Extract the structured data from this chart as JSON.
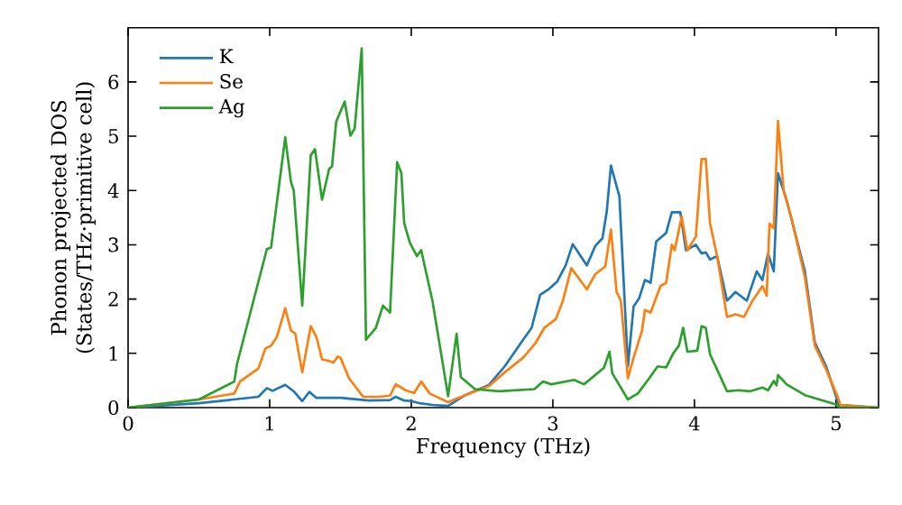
{
  "chart_data": {
    "type": "line",
    "xlabel": "Frequency (THz)",
    "ylabel": "Phonon projected DOS\n(States/THz·primitive cell)",
    "xlim": [
      0,
      5.3
    ],
    "ylim": [
      0,
      7
    ],
    "xticks": [
      0,
      1,
      2,
      3,
      4,
      5
    ],
    "yticks": [
      0,
      1,
      2,
      3,
      4,
      5,
      6
    ],
    "legend": "top left",
    "grid": false,
    "series": [
      {
        "name": "K",
        "color": "#1f77b4",
        "x": [
          0,
          0.5,
          0.92,
          0.98,
          1.02,
          1.11,
          1.17,
          1.23,
          1.28,
          1.33,
          1.5,
          1.7,
          1.85,
          1.89,
          1.95,
          2.0,
          2.06,
          2.15,
          2.26,
          2.38,
          2.55,
          2.66,
          2.79,
          2.85,
          2.91,
          2.97,
          3.03,
          3.09,
          3.14,
          3.24,
          3.3,
          3.35,
          3.38,
          3.41,
          3.47,
          3.53,
          3.57,
          3.61,
          3.65,
          3.69,
          3.73,
          3.8,
          3.84,
          3.9,
          3.94,
          4.01,
          4.05,
          4.08,
          4.11,
          4.16,
          4.23,
          4.29,
          4.37,
          4.44,
          4.48,
          4.52,
          4.56,
          4.59,
          4.65,
          4.78,
          4.85,
          4.93,
          5.02,
          5.3
        ],
        "values": [
          0,
          0.08,
          0.2,
          0.36,
          0.31,
          0.42,
          0.3,
          0.12,
          0.29,
          0.18,
          0.18,
          0.13,
          0.14,
          0.2,
          0.13,
          0.12,
          0.08,
          0.05,
          0.03,
          0.23,
          0.42,
          0.76,
          1.25,
          1.47,
          2.08,
          2.18,
          2.32,
          2.62,
          3.01,
          2.62,
          2.98,
          3.12,
          3.6,
          4.46,
          3.89,
          0.76,
          1.86,
          2.02,
          2.35,
          2.3,
          3.06,
          3.22,
          3.6,
          3.6,
          2.9,
          3.0,
          2.84,
          2.86,
          2.73,
          2.79,
          1.97,
          2.13,
          1.97,
          2.51,
          2.35,
          2.84,
          2.51,
          4.32,
          3.83,
          2.51,
          1.2,
          0.76,
          0.05,
          0
        ]
      },
      {
        "name": "Se",
        "color": "#ff7f0e",
        "x": [
          0,
          0.5,
          0.75,
          0.79,
          0.92,
          0.97,
          1.01,
          1.05,
          1.11,
          1.15,
          1.18,
          1.23,
          1.29,
          1.33,
          1.37,
          1.42,
          1.45,
          1.48,
          1.5,
          1.56,
          1.66,
          1.77,
          1.85,
          1.89,
          1.96,
          2.02,
          2.07,
          2.13,
          2.26,
          2.38,
          2.55,
          2.66,
          2.79,
          2.88,
          2.94,
          3.02,
          3.07,
          3.13,
          3.24,
          3.3,
          3.37,
          3.41,
          3.45,
          3.48,
          3.53,
          3.57,
          3.63,
          3.65,
          3.69,
          3.76,
          3.8,
          3.84,
          3.86,
          3.91,
          3.95,
          4.01,
          4.05,
          4.08,
          4.11,
          4.16,
          4.23,
          4.29,
          4.35,
          4.41,
          4.48,
          4.51,
          4.53,
          4.56,
          4.59,
          4.63,
          4.69,
          4.78,
          4.85,
          4.93,
          5.01,
          5.03,
          5.3
        ],
        "values": [
          0,
          0.15,
          0.26,
          0.48,
          0.72,
          1.09,
          1.14,
          1.3,
          1.83,
          1.42,
          1.37,
          0.65,
          1.5,
          1.3,
          0.89,
          0.86,
          0.83,
          0.94,
          0.92,
          0.54,
          0.2,
          0.2,
          0.22,
          0.43,
          0.32,
          0.27,
          0.48,
          0.26,
          0.1,
          0.23,
          0.4,
          0.65,
          0.92,
          1.2,
          1.47,
          1.63,
          1.96,
          2.57,
          2.18,
          2.46,
          2.6,
          3.28,
          2.13,
          1.97,
          0.54,
          0.92,
          1.42,
          1.8,
          1.75,
          2.24,
          2.3,
          3.0,
          2.9,
          3.52,
          2.9,
          3.15,
          4.58,
          4.58,
          3.39,
          2.79,
          1.67,
          1.72,
          1.67,
          1.97,
          2.24,
          2.06,
          3.39,
          3.3,
          5.28,
          4.0,
          3.44,
          2.4,
          1.14,
          0.7,
          0.21,
          0.05,
          0
        ]
      },
      {
        "name": "Ag",
        "color": "#2ca02c",
        "x": [
          0,
          0.5,
          0.75,
          0.77,
          0.98,
          1.01,
          1.11,
          1.15,
          1.17,
          1.23,
          1.29,
          1.32,
          1.37,
          1.42,
          1.44,
          1.47,
          1.53,
          1.57,
          1.6,
          1.65,
          1.68,
          1.75,
          1.8,
          1.85,
          1.9,
          1.93,
          1.95,
          1.99,
          2.04,
          2.07,
          2.15,
          2.26,
          2.32,
          2.35,
          2.45,
          2.62,
          2.87,
          2.93,
          2.99,
          3.15,
          3.22,
          3.36,
          3.4,
          3.42,
          3.53,
          3.6,
          3.68,
          3.74,
          3.8,
          3.85,
          3.89,
          3.92,
          3.95,
          4.02,
          4.05,
          4.08,
          4.11,
          4.16,
          4.23,
          4.31,
          4.39,
          4.48,
          4.52,
          4.56,
          4.58,
          4.59,
          4.65,
          4.78,
          5.01,
          5.03,
          5.3
        ],
        "values": [
          0,
          0.15,
          0.48,
          0.81,
          2.92,
          2.95,
          4.98,
          4.16,
          4.0,
          1.88,
          4.65,
          4.76,
          3.83,
          4.4,
          4.44,
          5.27,
          5.64,
          5.01,
          5.14,
          6.62,
          1.25,
          1.47,
          1.88,
          1.75,
          4.52,
          4.32,
          3.4,
          3.04,
          2.79,
          2.9,
          1.96,
          0.21,
          1.36,
          0.56,
          0.34,
          0.3,
          0.34,
          0.48,
          0.43,
          0.51,
          0.43,
          0.73,
          1.03,
          0.63,
          0.15,
          0.26,
          0.54,
          0.76,
          0.74,
          1.0,
          1.14,
          1.47,
          1.03,
          1.05,
          1.5,
          1.47,
          0.98,
          0.7,
          0.3,
          0.32,
          0.3,
          0.37,
          0.32,
          0.49,
          0.41,
          0.6,
          0.43,
          0.23,
          0.05,
          0,
          0
        ]
      }
    ]
  }
}
